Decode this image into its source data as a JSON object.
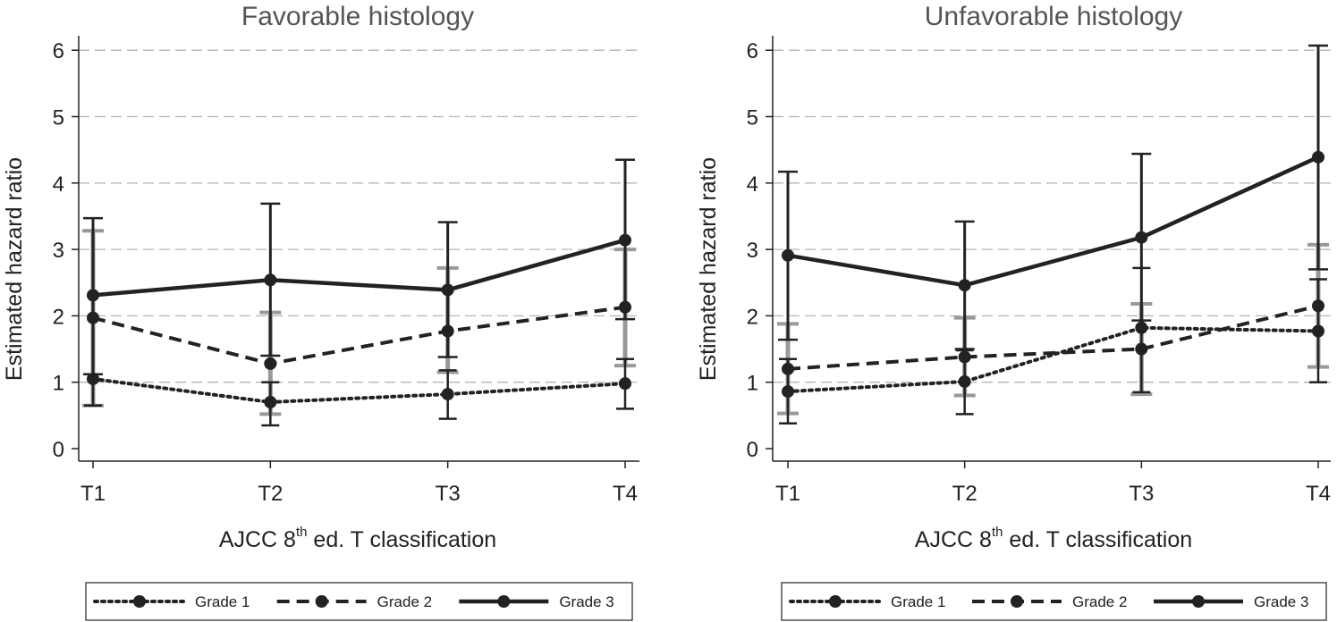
{
  "chart_data": [
    {
      "type": "line",
      "title": "Favorable histology",
      "ylabel": "Estimated hazard ratio",
      "xlabel_prefix": "AJCC 8",
      "xlabel_sup": "th",
      "xlabel_suffix": " ed. T classification",
      "categories": [
        "T1",
        "T2",
        "T3",
        "T4"
      ],
      "yticks": [
        "0",
        "1",
        "2",
        "3",
        "4",
        "5",
        "6"
      ],
      "ylim": [
        0,
        6
      ],
      "grid": true,
      "legend_position": "bottom",
      "series": [
        {
          "name": "Grade 1",
          "style": "dotted",
          "values": [
            1.05,
            0.7,
            0.82,
            0.98
          ],
          "ci_lower": [
            0.65,
            0.35,
            0.45,
            0.6
          ],
          "ci_upper": [
            1.12,
            1.0,
            1.18,
            1.35
          ]
        },
        {
          "name": "Grade 2",
          "style": "dashed",
          "values": [
            1.97,
            1.28,
            1.77,
            2.13
          ],
          "ci_lower": [
            0.65,
            0.52,
            1.15,
            1.25
          ],
          "ci_upper": [
            3.28,
            2.05,
            2.72,
            3.0
          ]
        },
        {
          "name": "Grade 3",
          "style": "solid",
          "values": [
            2.31,
            2.54,
            2.39,
            3.14
          ],
          "ci_lower": [
            1.12,
            1.4,
            1.38,
            1.95
          ],
          "ci_upper": [
            3.47,
            3.69,
            3.41,
            4.35
          ]
        }
      ]
    },
    {
      "type": "line",
      "title": "Unfavorable histology",
      "ylabel": "Estimated hazard ratio",
      "xlabel_prefix": "AJCC 8",
      "xlabel_sup": "th",
      "xlabel_suffix": " ed. T classification",
      "categories": [
        "T1",
        "T2",
        "T3",
        "T4"
      ],
      "yticks": [
        "0",
        "1",
        "2",
        "3",
        "4",
        "5",
        "6"
      ],
      "ylim": [
        0,
        6
      ],
      "grid": true,
      "legend_position": "bottom",
      "series": [
        {
          "name": "Grade 1",
          "style": "dotted",
          "values": [
            0.86,
            1.01,
            1.82,
            1.77
          ],
          "ci_lower": [
            0.38,
            0.52,
            0.85,
            1.0
          ],
          "ci_upper": [
            1.35,
            1.48,
            2.72,
            2.55
          ]
        },
        {
          "name": "Grade 2",
          "style": "dashed",
          "values": [
            1.2,
            1.38,
            1.5,
            2.15
          ],
          "ci_lower": [
            0.53,
            0.8,
            0.82,
            1.23
          ],
          "ci_upper": [
            1.88,
            1.97,
            2.18,
            3.07
          ]
        },
        {
          "name": "Grade 3",
          "style": "solid",
          "values": [
            2.91,
            2.46,
            3.18,
            4.39
          ],
          "ci_lower": [
            1.64,
            1.5,
            1.93,
            2.7
          ],
          "ci_upper": [
            4.17,
            3.42,
            4.44,
            6.07
          ]
        }
      ]
    }
  ],
  "colors": {
    "series_line": "#222222",
    "ci_grade1": "#222222",
    "ci_grade2": "#999999",
    "ci_grade3": "#222222",
    "grid": "#b5b5b5",
    "title": "#555555"
  }
}
